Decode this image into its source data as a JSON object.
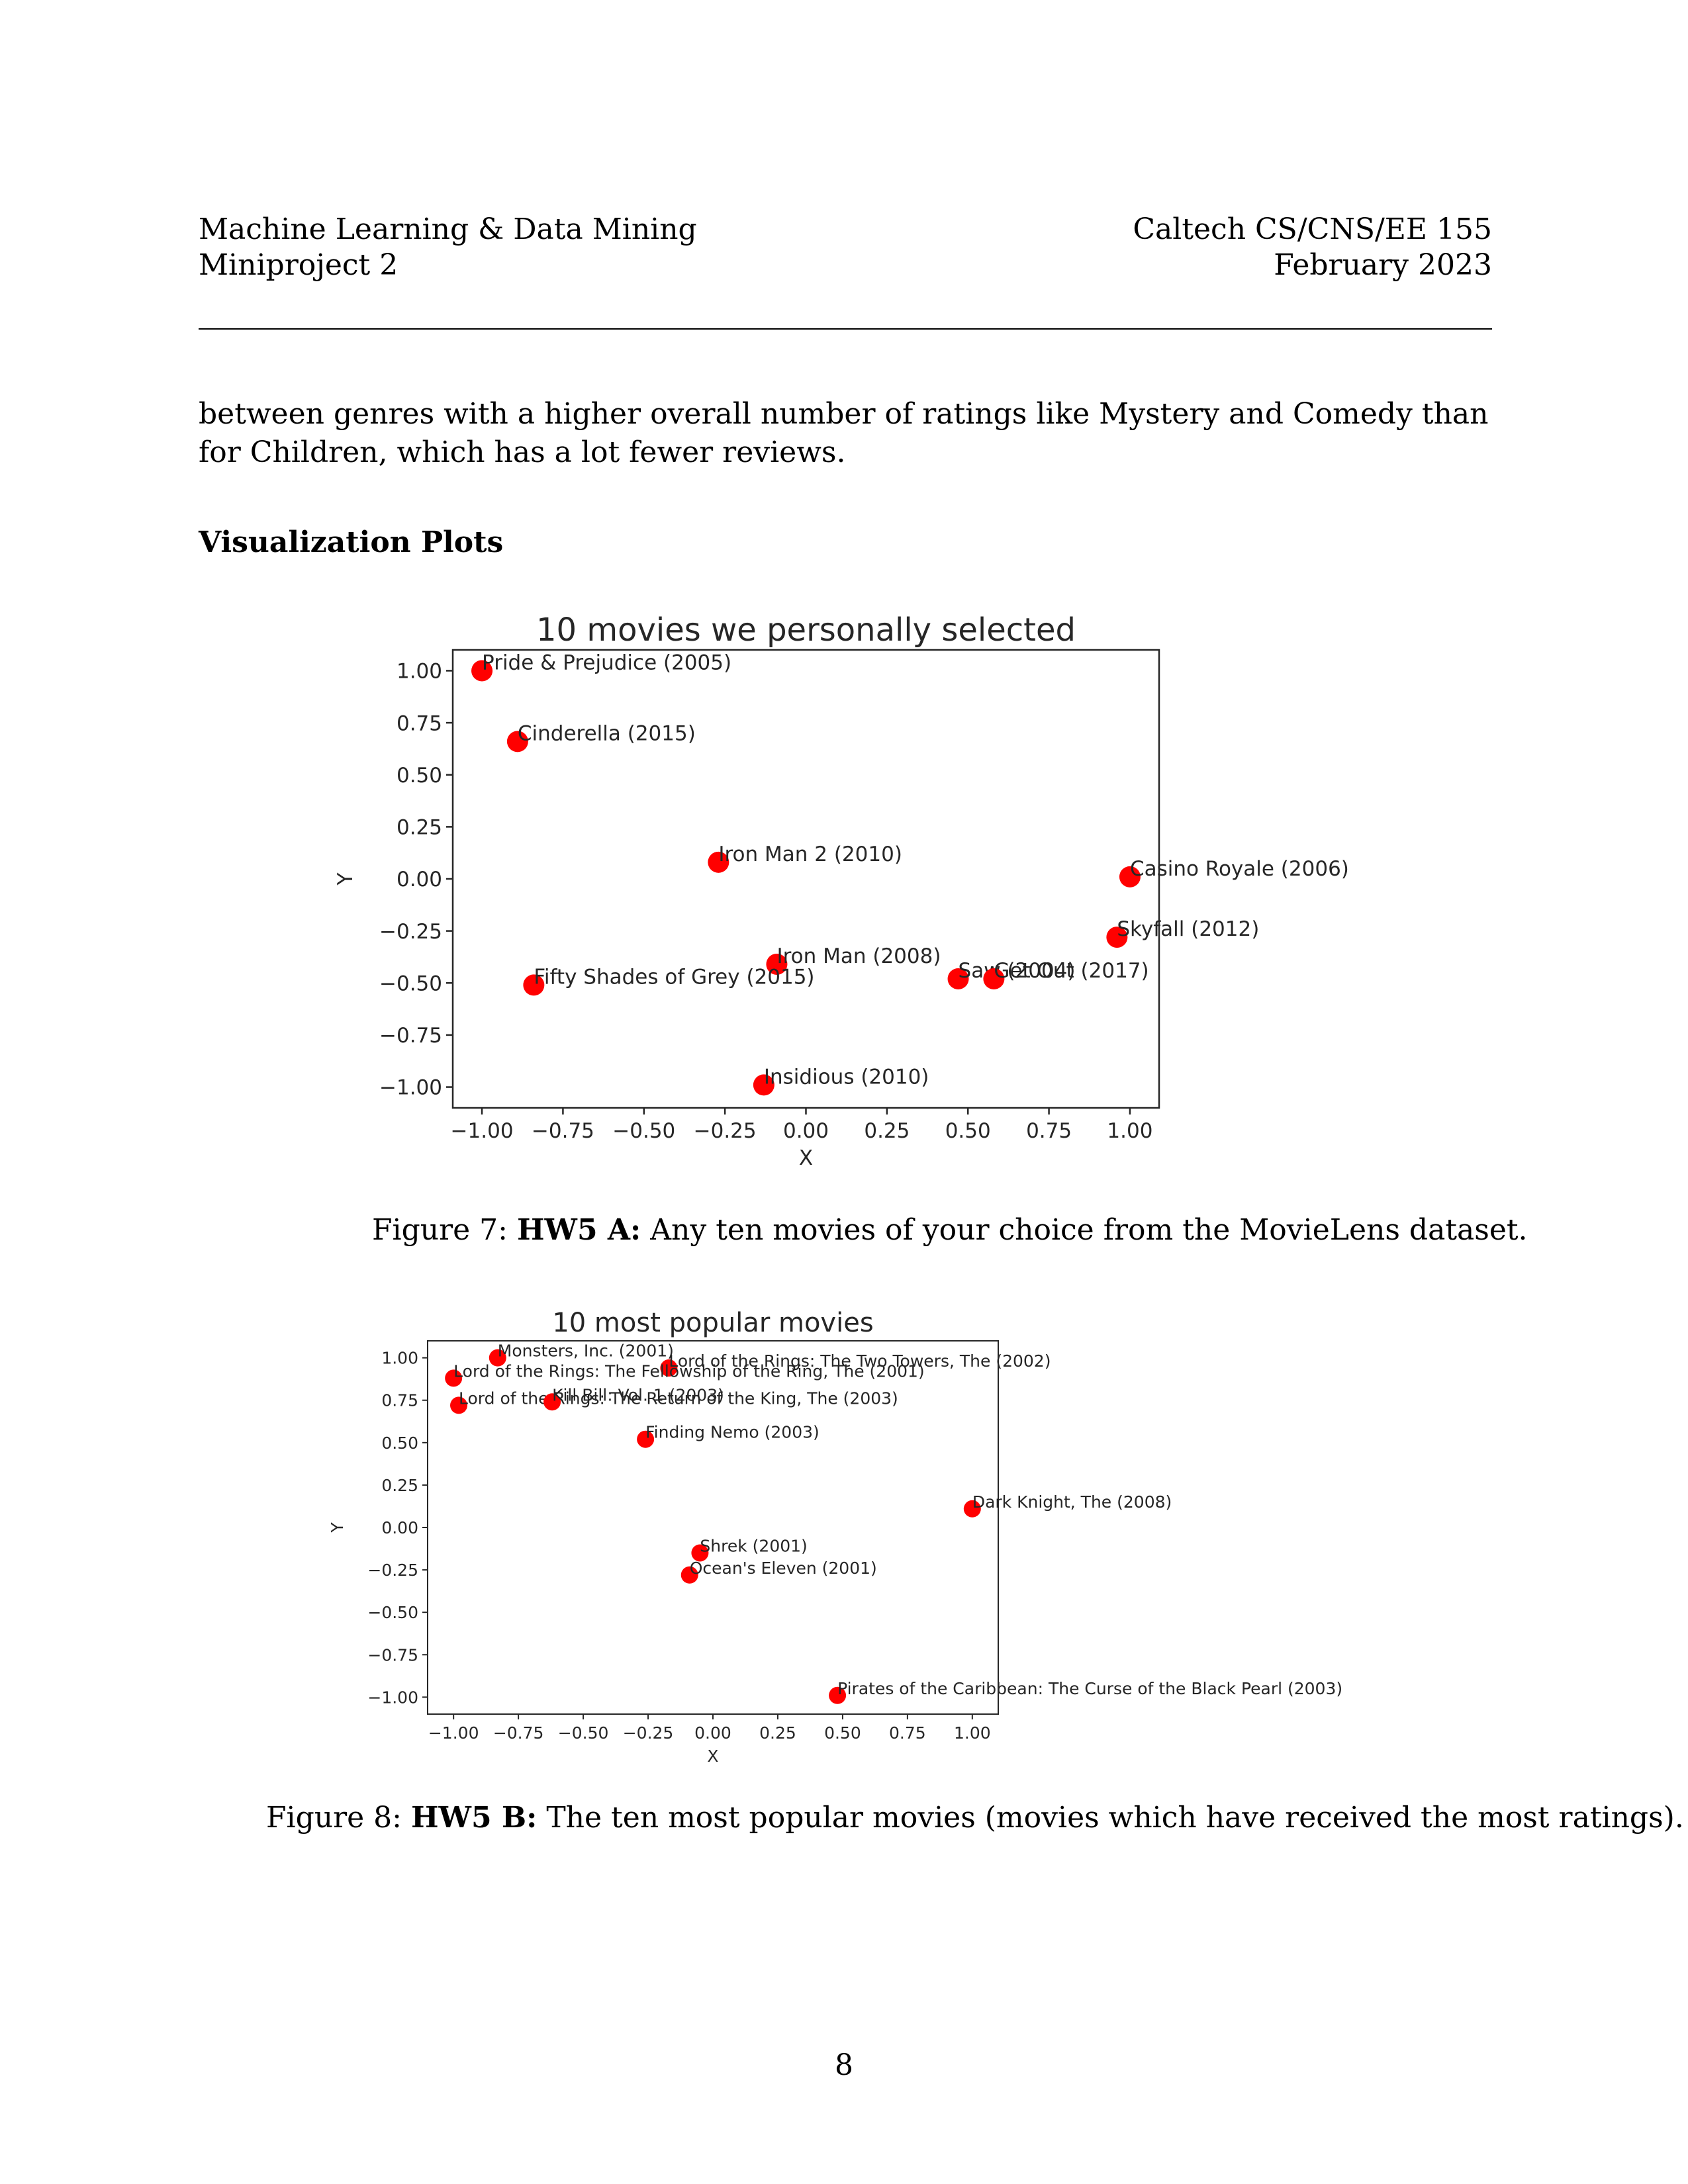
{
  "header": {
    "left_line1": "Machine Learning & Data Mining",
    "left_line2": "Miniproject 2",
    "right_line1": "Caltech CS/CNS/EE 155",
    "right_line2": "February 2023"
  },
  "body_text": "between genres with a higher overall number of ratings like Mystery and Comedy than for Children, which has a lot fewer reviews.",
  "section_title": "Visualization Plots",
  "figure7": {
    "caption_prefix": "Figure 7: ",
    "caption_bold": "HW5 A:",
    "caption_text": " Any ten movies of your choice from the MovieLens dataset."
  },
  "figure8": {
    "caption_prefix": "Figure 8: ",
    "caption_bold": "HW5 B:",
    "caption_text": " The ten most popular movies (movies which have received the most ratings)."
  },
  "page_number": "8",
  "chart_data": [
    {
      "type": "scatter",
      "title": "10 movies we personally selected",
      "xlabel": "X",
      "ylabel": "Y",
      "xlim": [
        -1.09,
        1.09
      ],
      "ylim": [
        -1.1,
        1.1
      ],
      "xticks": [
        -1.0,
        -0.75,
        -0.5,
        -0.25,
        0.0,
        0.25,
        0.5,
        0.75,
        1.0
      ],
      "xtick_labels": [
        "−1.00",
        "−0.75",
        "−0.50",
        "−0.25",
        "0.00",
        "0.25",
        "0.50",
        "0.75",
        "1.00"
      ],
      "yticks": [
        1.0,
        0.75,
        0.5,
        0.25,
        0.0,
        -0.25,
        -0.5,
        -0.75,
        -1.0
      ],
      "ytick_labels": [
        "1.00",
        "0.75",
        "0.50",
        "0.25",
        "0.00",
        "−0.25",
        "−0.50",
        "−0.75",
        "−1.00"
      ],
      "grid": false,
      "marker_color": "#ff0000",
      "points": [
        {
          "label": "Pride & Prejudice (2005)",
          "x": -1.0,
          "y": 1.0
        },
        {
          "label": "Cinderella (2015)",
          "x": -0.89,
          "y": 0.66
        },
        {
          "label": "Iron Man 2 (2010)",
          "x": -0.27,
          "y": 0.08
        },
        {
          "label": "Casino Royale (2006)",
          "x": 1.0,
          "y": 0.01
        },
        {
          "label": "Skyfall (2012)",
          "x": 0.96,
          "y": -0.28
        },
        {
          "label": "Iron Man (2008)",
          "x": -0.09,
          "y": -0.41
        },
        {
          "label": "Fifty Shades of Grey (2015)",
          "x": -0.84,
          "y": -0.51
        },
        {
          "label": "Saw (2004)",
          "x": 0.47,
          "y": -0.48
        },
        {
          "label": "Get Out (2017)",
          "x": 0.58,
          "y": -0.48
        },
        {
          "label": "Insidious (2010)",
          "x": -0.13,
          "y": -0.99
        }
      ]
    },
    {
      "type": "scatter",
      "title": "10 most popular movies",
      "xlabel": "X",
      "ylabel": "Y",
      "xlim": [
        -1.1,
        1.1
      ],
      "ylim": [
        -1.1,
        1.1
      ],
      "xticks": [
        -1.0,
        -0.75,
        -0.5,
        -0.25,
        0.0,
        0.25,
        0.5,
        0.75,
        1.0
      ],
      "xtick_labels": [
        "−1.00",
        "−0.75",
        "−0.50",
        "−0.25",
        "0.00",
        "0.25",
        "0.50",
        "0.75",
        "1.00"
      ],
      "yticks": [
        1.0,
        0.75,
        0.5,
        0.25,
        0.0,
        -0.25,
        -0.5,
        -0.75,
        -1.0
      ],
      "ytick_labels": [
        "1.00",
        "0.75",
        "0.50",
        "0.25",
        "0.00",
        "−0.25",
        "−0.50",
        "−0.75",
        "−1.00"
      ],
      "grid": false,
      "marker_color": "#ff0000",
      "points": [
        {
          "label": "Monsters, Inc. (2001)",
          "x": -0.83,
          "y": 1.0
        },
        {
          "label": "Lord of the Rings: The Two Towers, The (2002)",
          "x": -0.17,
          "y": 0.94
        },
        {
          "label": "Lord of the Rings: The Fellowship of the Ring, The (2001)",
          "x": -1.0,
          "y": 0.88
        },
        {
          "label": "Lord of the Rings: The Return of the King, The (2003)",
          "x": -0.98,
          "y": 0.72
        },
        {
          "label": "Kill Bill: Vol. 1 (2003)",
          "x": -0.62,
          "y": 0.74
        },
        {
          "label": "Finding Nemo (2003)",
          "x": -0.26,
          "y": 0.52
        },
        {
          "label": "Dark Knight, The (2008)",
          "x": 1.0,
          "y": 0.11
        },
        {
          "label": "Shrek (2001)",
          "x": -0.05,
          "y": -0.15
        },
        {
          "label": "Ocean's Eleven (2001)",
          "x": -0.09,
          "y": -0.28
        },
        {
          "label": "Pirates of the Caribbean: The Curse of the Black Pearl (2003)",
          "x": 0.48,
          "y": -0.99
        }
      ]
    }
  ]
}
